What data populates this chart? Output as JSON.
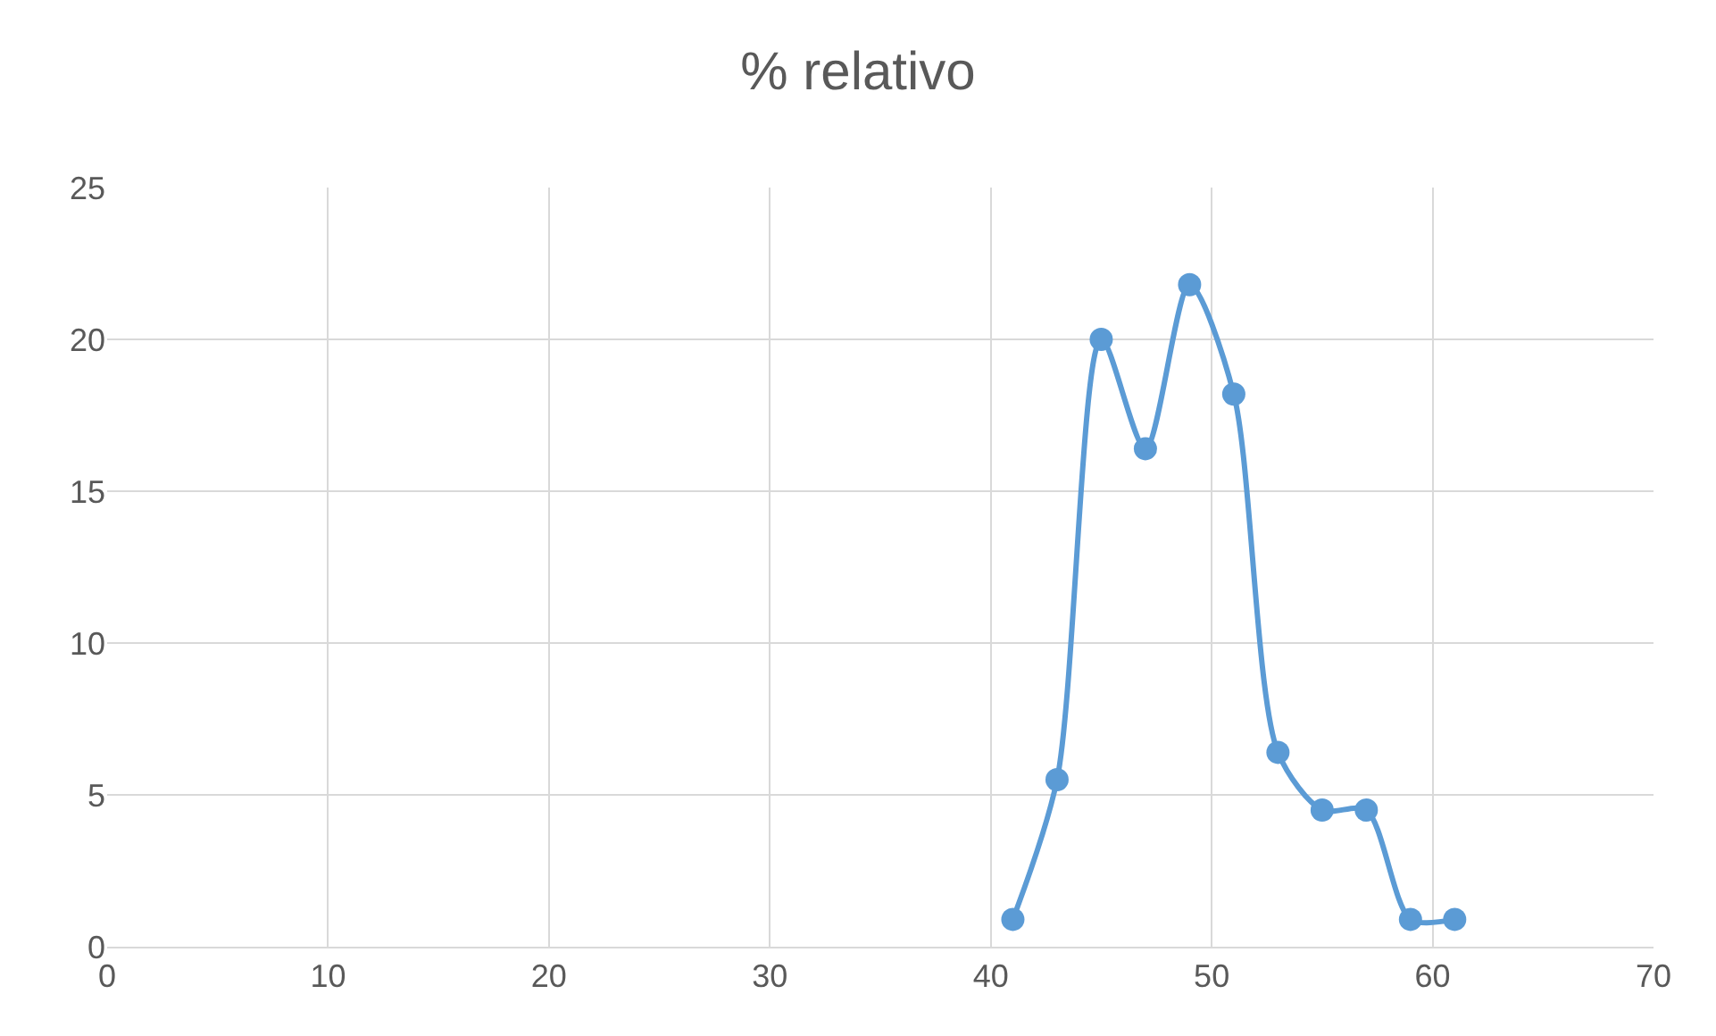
{
  "chart_data": {
    "type": "line",
    "title": "% relativo",
    "x": [
      41,
      43,
      45,
      47,
      49,
      51,
      53,
      55,
      57,
      59,
      61
    ],
    "series": [
      {
        "color": "#5b9bd5",
        "values": [
          0.9,
          5.5,
          20.0,
          16.4,
          21.8,
          18.2,
          6.4,
          4.5,
          4.5,
          0.9,
          0.9
        ]
      }
    ],
    "xlim": [
      0,
      70
    ],
    "xticks": [
      0,
      10,
      20,
      30,
      40,
      50,
      60,
      70
    ],
    "ylim": [
      0,
      25
    ],
    "yticks": [
      0,
      5,
      10,
      15,
      20,
      25
    ],
    "grid": true,
    "marker": "circle",
    "line_style": "solid"
  }
}
